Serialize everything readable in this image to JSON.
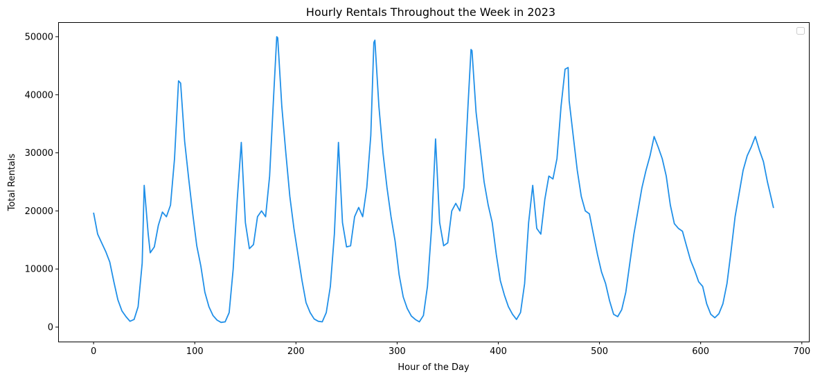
{
  "chart_data": {
    "type": "line",
    "title": "Hourly Rentals Throughout the Week in 2023",
    "xlabel": "Hour of the Day",
    "ylabel": "Total Rentals",
    "xlim": [
      -35,
      707
    ],
    "ylim": [
      -2500,
      52500
    ],
    "xticks": [
      0,
      100,
      200,
      300,
      400,
      500,
      600,
      700
    ],
    "yticks": [
      0,
      10000,
      20000,
      30000,
      40000,
      50000
    ],
    "grid": false,
    "legend": "top-right",
    "line_color": "#1f8fe8",
    "series": [
      {
        "x": [
          0,
          4,
          8,
          12,
          16,
          20,
          24,
          28,
          32,
          36,
          40,
          44,
          48,
          50,
          54,
          56,
          60,
          64,
          68,
          72,
          76,
          80,
          84,
          86,
          90,
          94,
          98,
          102,
          106,
          110,
          114,
          118,
          122,
          126,
          130,
          134,
          138,
          142,
          146,
          150,
          154,
          158,
          162,
          166,
          170,
          174,
          178,
          181,
          182,
          186,
          190,
          194,
          198,
          202,
          206,
          210,
          214,
          218,
          222,
          226,
          230,
          234,
          238,
          242,
          246,
          250,
          254,
          258,
          262,
          266,
          270,
          274,
          277,
          278,
          282,
          286,
          290,
          294,
          298,
          302,
          306,
          310,
          314,
          318,
          322,
          326,
          330,
          334,
          338,
          342,
          346,
          350,
          354,
          358,
          362,
          366,
          370,
          373,
          374,
          378,
          382,
          386,
          390,
          394,
          398,
          402,
          406,
          410,
          414,
          418,
          422,
          426,
          430,
          434,
          438,
          442,
          446,
          450,
          454,
          458,
          462,
          466,
          469,
          470,
          474,
          478,
          482,
          486,
          490,
          494,
          498,
          502,
          506,
          510,
          514,
          518,
          522,
          526,
          530,
          534,
          538,
          542,
          546,
          550,
          554,
          558,
          562,
          566,
          570,
          574,
          578,
          582,
          586,
          590,
          594,
          598,
          602,
          606,
          610,
          614,
          618,
          622,
          626,
          630,
          634,
          638,
          642,
          646,
          650,
          654,
          658,
          662,
          666,
          672
        ],
        "y": [
          19700,
          16000,
          14500,
          13000,
          11200,
          7800,
          4700,
          2800,
          1800,
          1000,
          1300,
          3500,
          11000,
          24400,
          16000,
          12800,
          13800,
          17500,
          19800,
          19000,
          21000,
          29000,
          42400,
          42000,
          32000,
          25500,
          19500,
          14000,
          10500,
          6000,
          3500,
          2000,
          1200,
          800,
          900,
          2500,
          10000,
          22000,
          31800,
          18000,
          13500,
          14200,
          19000,
          20000,
          19000,
          26000,
          40000,
          50000,
          49800,
          38000,
          30000,
          22500,
          17000,
          12500,
          8000,
          4200,
          2500,
          1400,
          1000,
          900,
          2500,
          7000,
          16000,
          31800,
          18000,
          13800,
          14000,
          19000,
          20600,
          19000,
          24000,
          33000,
          49000,
          49400,
          38000,
          30000,
          24000,
          19000,
          14800,
          9000,
          5200,
          3200,
          1900,
          1300,
          900,
          2000,
          7000,
          17000,
          32400,
          18000,
          14000,
          14500,
          20000,
          21300,
          20000,
          24000,
          38000,
          47800,
          47600,
          37000,
          31000,
          25000,
          21000,
          18000,
          12500,
          8000,
          5500,
          3500,
          2200,
          1300,
          2500,
          7500,
          18000,
          24400,
          17000,
          16000,
          22000,
          26000,
          25500,
          29000,
          38000,
          44400,
          44700,
          39000,
          33000,
          27000,
          22500,
          20000,
          19500,
          16000,
          12500,
          9500,
          7500,
          4500,
          2200,
          1800,
          3000,
          6000,
          11000,
          16000,
          20000,
          24000,
          27000,
          29500,
          32800,
          31000,
          29000,
          26000,
          21000,
          17800,
          17000,
          16500,
          14000,
          11500,
          9800,
          7800,
          7000,
          4000,
          2200,
          1600,
          2300,
          4000,
          7500,
          13000,
          19000,
          23000,
          27000,
          29500,
          31000,
          32800,
          30500,
          28500,
          25000,
          20500
        ]
      }
    ]
  }
}
